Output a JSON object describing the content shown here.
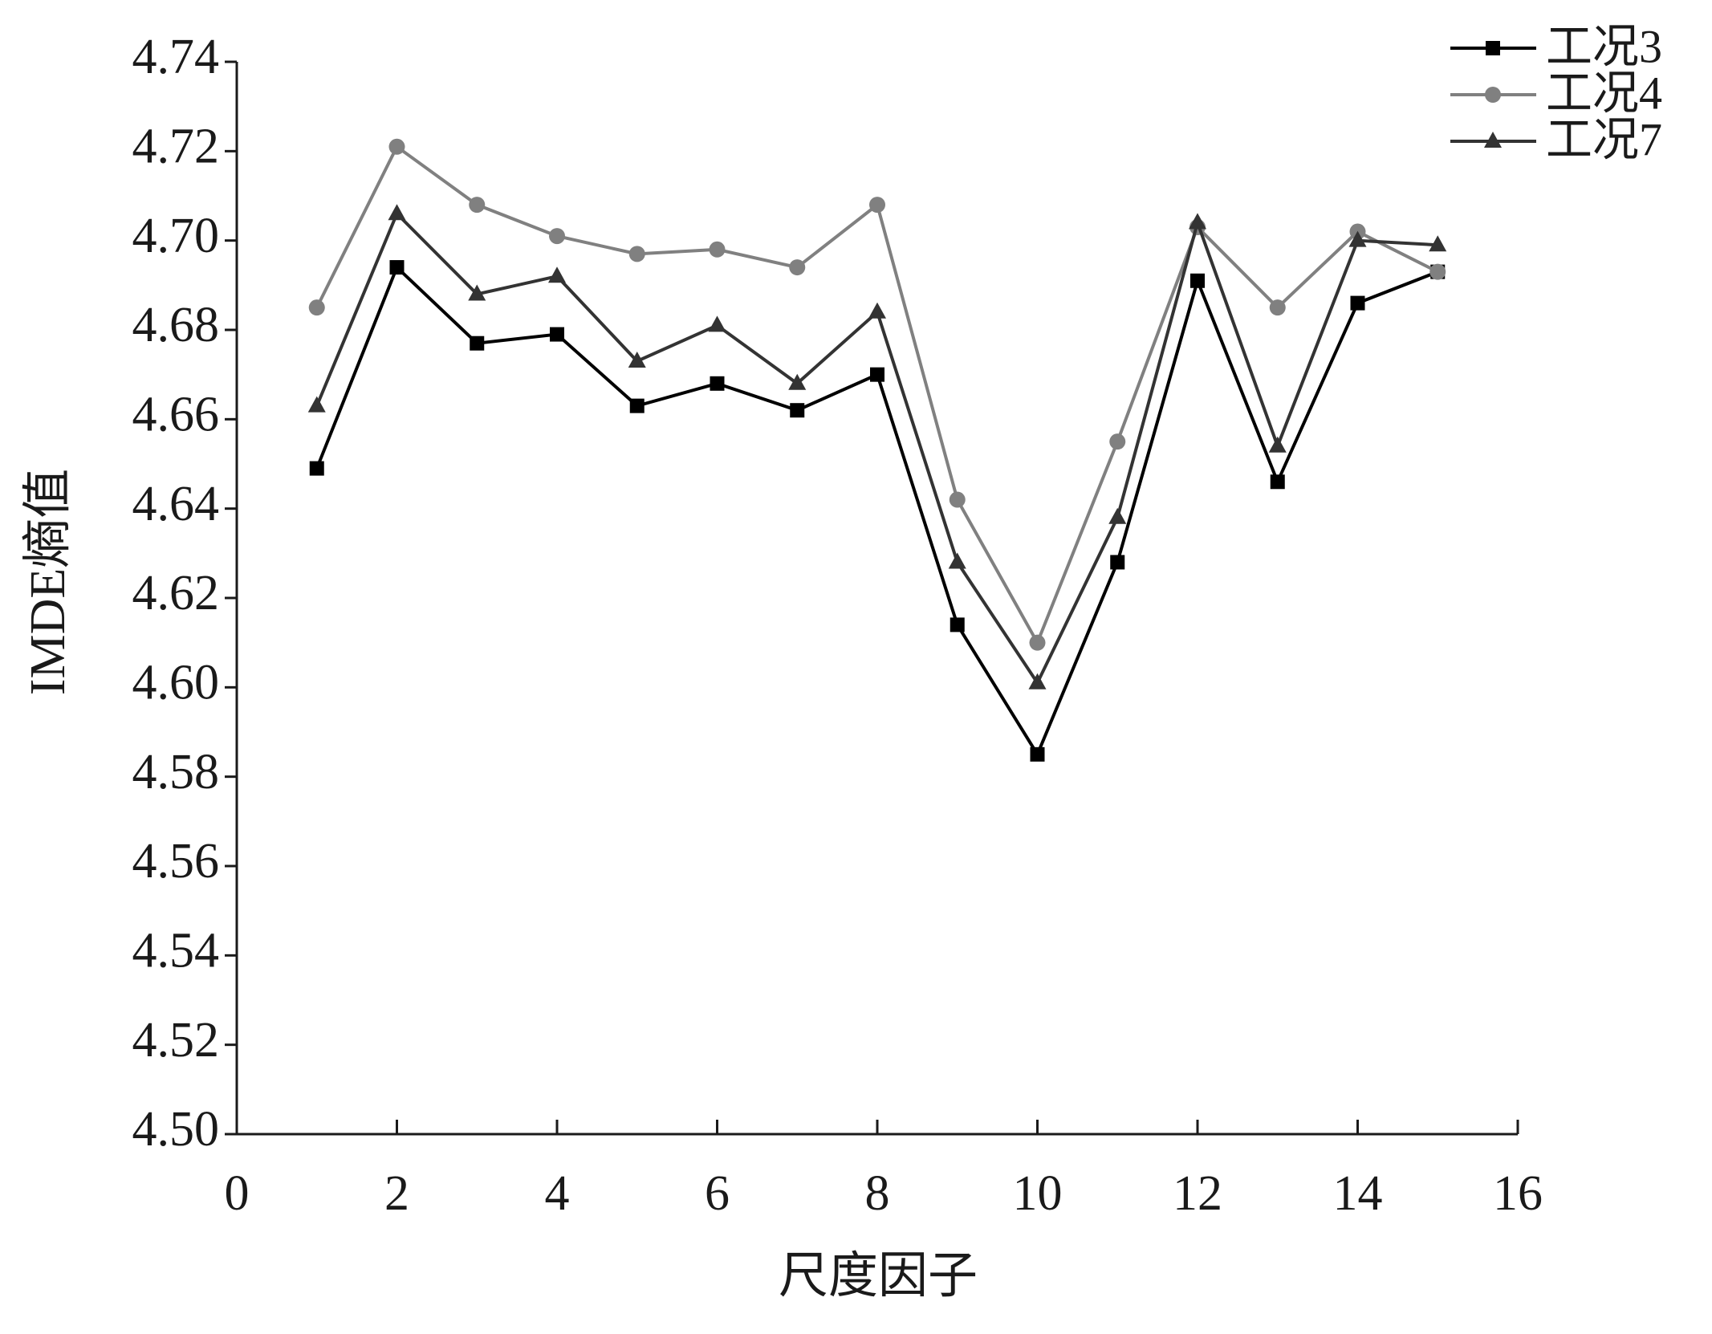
{
  "chart_data": {
    "type": "line",
    "x_label": "尺度因子",
    "y_label": "IMDE熵值",
    "x": [
      1,
      2,
      3,
      4,
      5,
      6,
      7,
      8,
      9,
      10,
      11,
      12,
      13,
      14,
      15
    ],
    "series": [
      {
        "name": "工况3",
        "color": "#000000",
        "marker": "square",
        "values": [
          4.649,
          4.694,
          4.677,
          4.679,
          4.663,
          4.668,
          4.662,
          4.67,
          4.614,
          4.585,
          4.628,
          4.691,
          4.646,
          4.686,
          4.693
        ]
      },
      {
        "name": "工况4",
        "color": "#808080",
        "marker": "circle",
        "values": [
          4.685,
          4.721,
          4.708,
          4.701,
          4.697,
          4.698,
          4.694,
          4.708,
          4.642,
          4.61,
          4.655,
          4.703,
          4.685,
          4.702,
          4.693
        ]
      },
      {
        "name": "工况7",
        "color": "#333333",
        "marker": "triangle",
        "values": [
          4.663,
          4.706,
          4.688,
          4.692,
          4.673,
          4.681,
          4.668,
          4.684,
          4.628,
          4.601,
          4.638,
          4.704,
          4.654,
          4.7,
          4.699
        ]
      }
    ],
    "xlim": [
      0,
      16
    ],
    "xticks": [
      0,
      2,
      4,
      6,
      8,
      10,
      12,
      14,
      16
    ],
    "ylim": [
      4.5,
      4.74
    ],
    "yticks": [
      {
        "value": 4.5,
        "label": "4.50"
      },
      4.52,
      4.54,
      4.56,
      4.58,
      {
        "value": 4.6,
        "label": "4.60"
      },
      4.62,
      4.64,
      4.66,
      4.68,
      {
        "value": 4.7,
        "label": "4.70"
      },
      4.72,
      4.74
    ],
    "grid": false,
    "legend": "top-right"
  }
}
